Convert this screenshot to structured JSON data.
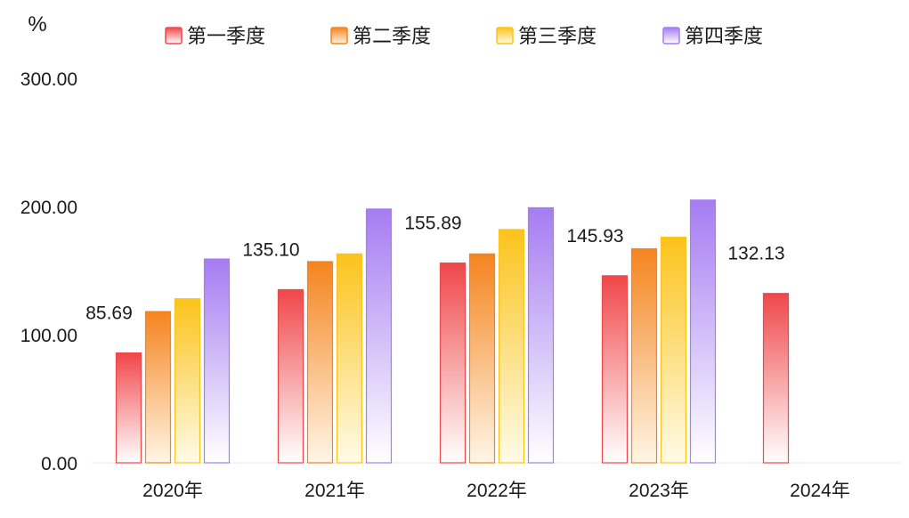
{
  "chart_data": {
    "type": "bar",
    "ylabel": "%",
    "ylim": [
      0,
      300
    ],
    "yticks": [
      0,
      100,
      200,
      300
    ],
    "ytick_labels": [
      "0.00",
      "100.00",
      "200.00",
      "300.00"
    ],
    "categories": [
      "2020年",
      "2021年",
      "2022年",
      "2023年",
      "2024年"
    ],
    "legend_position": "top-center",
    "series": [
      {
        "name": "第一季度",
        "color_top": "#f0474a",
        "color_bottom": "#ffffff",
        "values": [
          85.69,
          135.1,
          155.89,
          145.93,
          132.13
        ],
        "data_labels": [
          "85.69",
          "135.10",
          "155.89",
          "145.93",
          "132.13"
        ]
      },
      {
        "name": "第二季度",
        "color_top": "#f5841f",
        "color_bottom": "#fff6e6",
        "values": [
          118,
          157,
          163,
          167,
          null
        ]
      },
      {
        "name": "第三季度",
        "color_top": "#fbc31b",
        "color_bottom": "#fffbe8",
        "values": [
          128,
          163,
          182,
          176,
          null
        ]
      },
      {
        "name": "第四季度",
        "color_top": "#a57cf2",
        "color_bottom": "#ffffff",
        "values": [
          159,
          198,
          199,
          205,
          null
        ]
      }
    ]
  }
}
